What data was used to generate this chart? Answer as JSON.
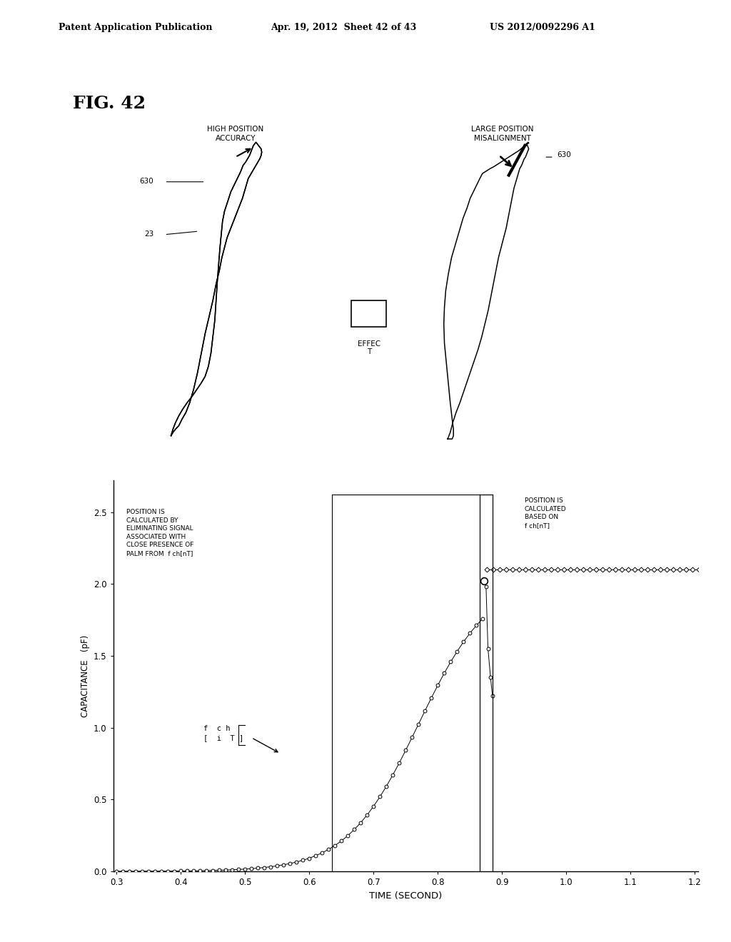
{
  "header_left": "Patent Application Publication",
  "header_center": "Apr. 19, 2012  Sheet 42 of 43",
  "header_right": "US 2012/0092296 A1",
  "fig_label": "FIG. 42",
  "background_color": "#ffffff",
  "text_color": "#000000",
  "plot_xlabel": "TIME (SECOND)",
  "plot_ylabel": "CAPACITANCE   (pF)",
  "xmin": 0.3,
  "xmax": 1.2,
  "ymin": 0.0,
  "ymax": 2.5,
  "xticks": [
    0.3,
    0.4,
    0.5,
    0.6,
    0.7,
    0.8,
    0.9,
    1.0,
    1.1,
    1.2
  ],
  "yticks": [
    0.0,
    0.5,
    1.0,
    1.5,
    2.0,
    2.5
  ],
  "annotation_left": "POSITION IS\nCALCULATED BY\nELIMINATING SIGNAL\nASSOCIATED WITH\nCLOSE PRESENCE OF\nPALM FROM  f ch[nT]",
  "annotation_right": "POSITION IS\nCALCULATED\nBASED ON\nf ch[nT]",
  "label_top_left": "HIGH POSITION\nACCURACY",
  "label_top_right": "LARGE POSITION\nMISALIGNMENT",
  "label_effect": "EFFEC\nT",
  "ref_630_left": "630",
  "ref_23": "23",
  "ref_630_right": "630",
  "legend_label": "f  c h\n[  i  T ]"
}
